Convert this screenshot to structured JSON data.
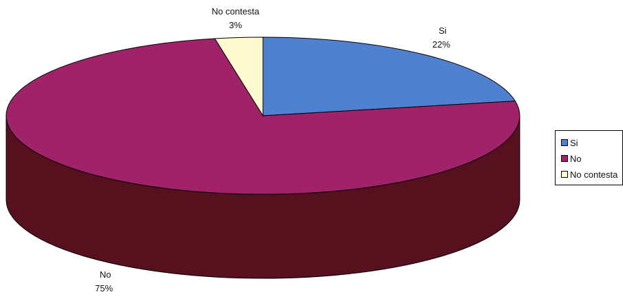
{
  "chart_data": {
    "type": "pie",
    "title": "",
    "three_d": true,
    "legend_position": "right",
    "slices": [
      {
        "name": "Si",
        "value": 22,
        "label": "Si",
        "percent_label": "22%",
        "color": "#4f81d0"
      },
      {
        "name": "No",
        "value": 75,
        "label": "No",
        "percent_label": "75%",
        "color": "#a0236a",
        "side_color": "#56101e"
      },
      {
        "name": "No contesta",
        "value": 3,
        "label": "No contesta",
        "percent_label": "3%",
        "color": "#fffbd0"
      }
    ]
  },
  "legend": {
    "items": [
      {
        "label": "Si",
        "color": "#4f81d0"
      },
      {
        "label": "No",
        "color": "#a0236a"
      },
      {
        "label": "No contesta",
        "color": "#fffbd0"
      }
    ]
  }
}
